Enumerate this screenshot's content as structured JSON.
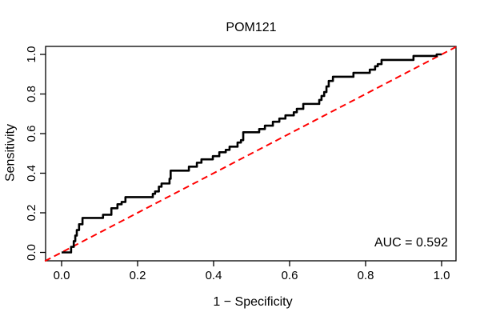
{
  "window": {
    "background": "#ffffff"
  },
  "chart_data": {
    "type": "line",
    "chart_kind": "roc-curve",
    "title": "POM121",
    "xlabel": "1 − Specificity",
    "ylabel": "Sensitivity",
    "x_tick_labels": [
      "0.0",
      "0.2",
      "0.4",
      "0.6",
      "0.8",
      "1.0"
    ],
    "x_tick_values": [
      0.0,
      0.2,
      0.4,
      0.6,
      0.8,
      1.0
    ],
    "y_tick_labels": [
      "0.0",
      "0.2",
      "0.4",
      "0.6",
      "0.8",
      "1.0"
    ],
    "y_tick_values": [
      0.0,
      0.2,
      0.4,
      0.6,
      0.8,
      1.0
    ],
    "xlim": [
      -0.044,
      1.038
    ],
    "ylim": [
      -0.045,
      1.04
    ],
    "grid": false,
    "legend": null,
    "annotation": {
      "text": "AUC = 0.592",
      "auc_value": 0.592
    },
    "colors": {
      "curve": "#000000",
      "diagonal": "#ff0000",
      "axis": "#000000",
      "text": "#000000",
      "background": "#ffffff"
    },
    "diagonal": {
      "style": "dashed",
      "from": [
        -0.044,
        -0.044
      ],
      "to": [
        1.038,
        1.038
      ]
    },
    "roc_points": [
      [
        0.0,
        0.0
      ],
      [
        0.025,
        0.0
      ],
      [
        0.025,
        0.028
      ],
      [
        0.032,
        0.028
      ],
      [
        0.032,
        0.057
      ],
      [
        0.036,
        0.057
      ],
      [
        0.036,
        0.085
      ],
      [
        0.04,
        0.085
      ],
      [
        0.04,
        0.113
      ],
      [
        0.046,
        0.113
      ],
      [
        0.046,
        0.142
      ],
      [
        0.055,
        0.142
      ],
      [
        0.055,
        0.174
      ],
      [
        0.109,
        0.174
      ],
      [
        0.109,
        0.19
      ],
      [
        0.131,
        0.19
      ],
      [
        0.131,
        0.223
      ],
      [
        0.147,
        0.223
      ],
      [
        0.147,
        0.243
      ],
      [
        0.158,
        0.243
      ],
      [
        0.158,
        0.255
      ],
      [
        0.168,
        0.255
      ],
      [
        0.168,
        0.279
      ],
      [
        0.24,
        0.279
      ],
      [
        0.24,
        0.296
      ],
      [
        0.246,
        0.296
      ],
      [
        0.246,
        0.308
      ],
      [
        0.256,
        0.308
      ],
      [
        0.256,
        0.332
      ],
      [
        0.263,
        0.332
      ],
      [
        0.263,
        0.348
      ],
      [
        0.284,
        0.348
      ],
      [
        0.284,
        0.372
      ],
      [
        0.287,
        0.372
      ],
      [
        0.287,
        0.413
      ],
      [
        0.335,
        0.413
      ],
      [
        0.335,
        0.433
      ],
      [
        0.356,
        0.433
      ],
      [
        0.356,
        0.453
      ],
      [
        0.368,
        0.453
      ],
      [
        0.368,
        0.47
      ],
      [
        0.398,
        0.47
      ],
      [
        0.398,
        0.486
      ],
      [
        0.415,
        0.486
      ],
      [
        0.415,
        0.506
      ],
      [
        0.432,
        0.506
      ],
      [
        0.432,
        0.518
      ],
      [
        0.442,
        0.518
      ],
      [
        0.442,
        0.534
      ],
      [
        0.463,
        0.534
      ],
      [
        0.463,
        0.555
      ],
      [
        0.472,
        0.555
      ],
      [
        0.472,
        0.567
      ],
      [
        0.478,
        0.567
      ],
      [
        0.478,
        0.607
      ],
      [
        0.52,
        0.607
      ],
      [
        0.52,
        0.623
      ],
      [
        0.535,
        0.623
      ],
      [
        0.535,
        0.64
      ],
      [
        0.556,
        0.64
      ],
      [
        0.556,
        0.66
      ],
      [
        0.573,
        0.66
      ],
      [
        0.573,
        0.676
      ],
      [
        0.589,
        0.676
      ],
      [
        0.589,
        0.692
      ],
      [
        0.611,
        0.692
      ],
      [
        0.611,
        0.708
      ],
      [
        0.619,
        0.708
      ],
      [
        0.619,
        0.725
      ],
      [
        0.636,
        0.725
      ],
      [
        0.636,
        0.75
      ],
      [
        0.678,
        0.75
      ],
      [
        0.678,
        0.77
      ],
      [
        0.684,
        0.77
      ],
      [
        0.684,
        0.79
      ],
      [
        0.691,
        0.79
      ],
      [
        0.691,
        0.81
      ],
      [
        0.697,
        0.81
      ],
      [
        0.697,
        0.838
      ],
      [
        0.703,
        0.838
      ],
      [
        0.703,
        0.866
      ],
      [
        0.714,
        0.866
      ],
      [
        0.714,
        0.887
      ],
      [
        0.768,
        0.887
      ],
      [
        0.768,
        0.907
      ],
      [
        0.811,
        0.907
      ],
      [
        0.811,
        0.923
      ],
      [
        0.825,
        0.923
      ],
      [
        0.825,
        0.94
      ],
      [
        0.832,
        0.94
      ],
      [
        0.832,
        0.951
      ],
      [
        0.842,
        0.951
      ],
      [
        0.842,
        0.972
      ],
      [
        0.926,
        0.972
      ],
      [
        0.926,
        0.992
      ],
      [
        0.987,
        0.992
      ],
      [
        0.987,
        1.0
      ],
      [
        1.0,
        1.0
      ]
    ]
  }
}
